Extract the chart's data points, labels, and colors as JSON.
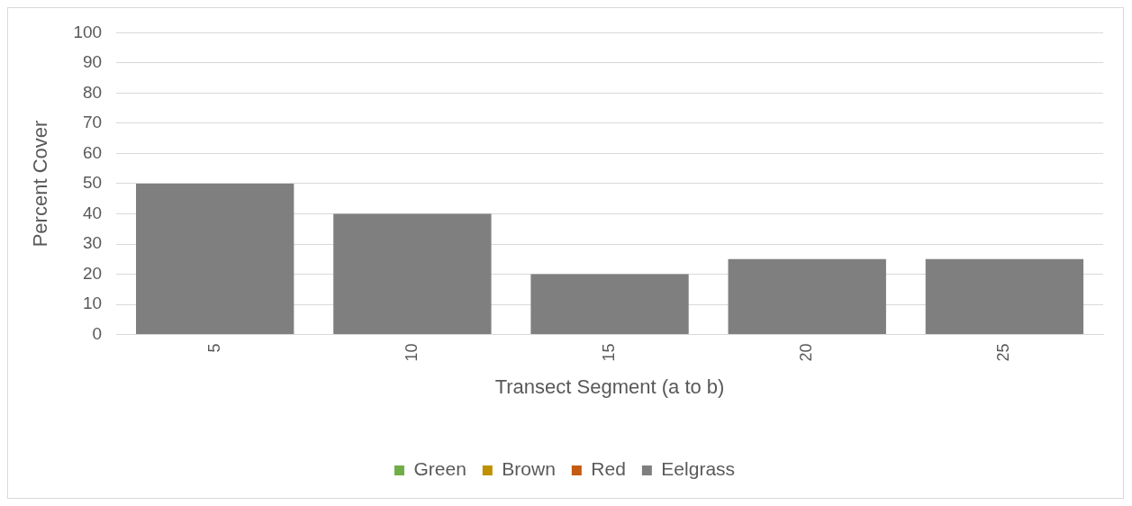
{
  "chart_data": {
    "type": "bar",
    "stacked": true,
    "xlabel": "Transect Segment (a to b)",
    "ylabel": "Percent Cover",
    "categories": [
      "5",
      "10",
      "15",
      "20",
      "25"
    ],
    "series": [
      {
        "name": "Green",
        "color": "#70ad47",
        "values": [
          0,
          0,
          0,
          0,
          0
        ]
      },
      {
        "name": "Brown",
        "color": "#bf9000",
        "values": [
          0,
          0,
          0,
          0,
          0
        ]
      },
      {
        "name": "Red",
        "color": "#c55a11",
        "values": [
          0,
          0,
          0,
          0,
          0
        ]
      },
      {
        "name": "Eelgrass",
        "color": "#7f7f7f",
        "values": [
          50,
          40,
          20,
          25,
          25
        ]
      }
    ],
    "ylim": [
      0,
      100
    ],
    "yticks": [
      0,
      10,
      20,
      30,
      40,
      50,
      60,
      70,
      80,
      90,
      100
    ],
    "grid": "y",
    "legend": "bottom"
  }
}
